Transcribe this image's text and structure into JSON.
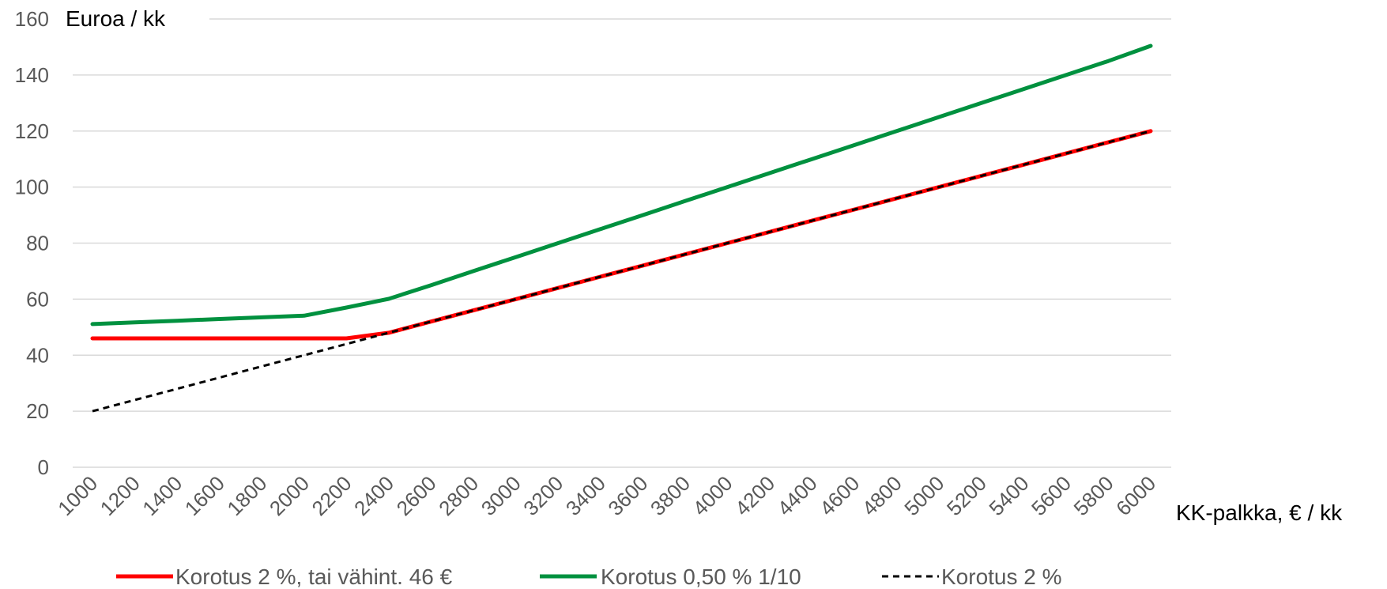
{
  "chart_data": {
    "type": "line",
    "ylabel": "Euroa / kk",
    "xlabel": "KK-palkka, € / kk",
    "ylim": [
      0,
      160
    ],
    "yticks": [
      "0",
      "20",
      "40",
      "60",
      "80",
      "100",
      "120",
      "140",
      "160"
    ],
    "categories": [
      "1000",
      "1200",
      "1400",
      "1600",
      "1800",
      "2000",
      "2200",
      "2400",
      "2600",
      "2800",
      "3000",
      "3200",
      "3400",
      "3600",
      "3800",
      "4000",
      "4200",
      "4400",
      "4600",
      "4800",
      "5000",
      "5200",
      "5400",
      "5600",
      "5800",
      "6000"
    ],
    "grid": "horizontal",
    "legend_position": "bottom",
    "series": [
      {
        "name": "Korotus 2 %, tai vähint. 46 €",
        "color": "#ff0000",
        "style": "solid",
        "values": [
          46,
          46,
          46,
          46,
          46,
          46,
          46,
          48,
          52,
          56,
          60,
          64,
          68,
          72,
          76,
          80,
          84,
          88,
          92,
          96,
          100,
          104,
          108,
          112,
          116,
          120
        ]
      },
      {
        "name": "Korotus 0,50 % 1/10",
        "color": "#00913f",
        "style": "solid",
        "values": [
          51.1,
          51.7,
          52.3,
          52.9,
          53.5,
          54.1,
          57,
          60.1,
          65,
          70,
          75,
          80,
          85,
          90,
          95,
          100,
          105,
          110,
          115,
          120,
          125,
          130,
          135,
          140,
          145,
          150.4
        ]
      },
      {
        "name": "Korotus 2 %",
        "color": "#000000",
        "style": "dashed",
        "values": [
          20,
          24,
          28,
          32,
          36,
          40,
          44,
          48,
          52,
          56,
          60,
          64,
          68,
          72,
          76,
          80,
          84,
          88,
          92,
          96,
          100,
          104,
          108,
          112,
          116,
          120
        ]
      }
    ]
  }
}
